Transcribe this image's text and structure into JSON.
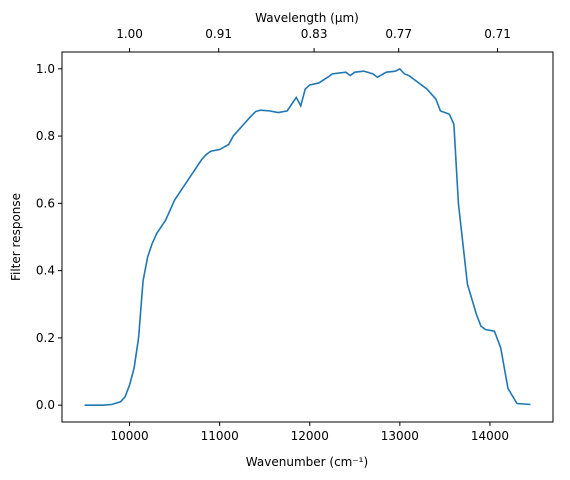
{
  "chart_data": {
    "type": "line",
    "xlabel": "Wavenumber (cm⁻¹)",
    "ylabel": "Filter response",
    "x2label": "Wavelength (μm)",
    "x2_scale": "reciprocal",
    "x": [
      9500,
      9700,
      9800,
      9900,
      9950,
      10000,
      10050,
      10100,
      10150,
      10200,
      10250,
      10300,
      10400,
      10500,
      10600,
      10700,
      10800,
      10850,
      10900,
      11000,
      11100,
      11150,
      11250,
      11350,
      11400,
      11450,
      11550,
      11650,
      11750,
      11850,
      11900,
      11950,
      12000,
      12100,
      12200,
      12250,
      12400,
      12450,
      12500,
      12600,
      12700,
      12750,
      12850,
      12950,
      13000,
      13050,
      13100,
      13200,
      13300,
      13400,
      13450,
      13550,
      13600,
      13650,
      13750,
      13850,
      13900,
      13950,
      14050,
      14120,
      14200,
      14300,
      14450
    ],
    "series": [
      {
        "name": "Filter response",
        "color": "#1f77b4",
        "values": [
          0.0,
          0.0,
          0.002,
          0.01,
          0.025,
          0.06,
          0.11,
          0.2,
          0.37,
          0.44,
          0.48,
          0.51,
          0.55,
          0.61,
          0.65,
          0.69,
          0.73,
          0.745,
          0.755,
          0.76,
          0.775,
          0.8,
          0.83,
          0.86,
          0.873,
          0.877,
          0.875,
          0.87,
          0.875,
          0.915,
          0.89,
          0.94,
          0.952,
          0.958,
          0.975,
          0.985,
          0.99,
          0.98,
          0.99,
          0.993,
          0.985,
          0.975,
          0.99,
          0.993,
          1.0,
          0.985,
          0.98,
          0.96,
          0.94,
          0.91,
          0.875,
          0.865,
          0.835,
          0.6,
          0.36,
          0.27,
          0.235,
          0.225,
          0.22,
          0.17,
          0.05,
          0.005,
          0.002
        ]
      }
    ],
    "xlim": [
      9250,
      14700
    ],
    "ylim": [
      -0.05,
      1.05
    ],
    "xticks": [
      10000,
      11000,
      12000,
      13000,
      14000
    ],
    "x2ticks": [
      {
        "value": 1.0,
        "label": "1.00"
      },
      {
        "value": 0.91,
        "label": "0.91"
      },
      {
        "value": 0.83,
        "label": "0.83"
      },
      {
        "value": 0.77,
        "label": "0.77"
      },
      {
        "value": 0.71,
        "label": "0.71"
      }
    ],
    "yticks": [
      {
        "value": 0.0,
        "label": "0.0"
      },
      {
        "value": 0.2,
        "label": "0.2"
      },
      {
        "value": 0.4,
        "label": "0.4"
      },
      {
        "value": 0.6,
        "label": "0.6"
      },
      {
        "value": 0.8,
        "label": "0.8"
      },
      {
        "value": 1.0,
        "label": "1.0"
      }
    ],
    "grid": false
  }
}
